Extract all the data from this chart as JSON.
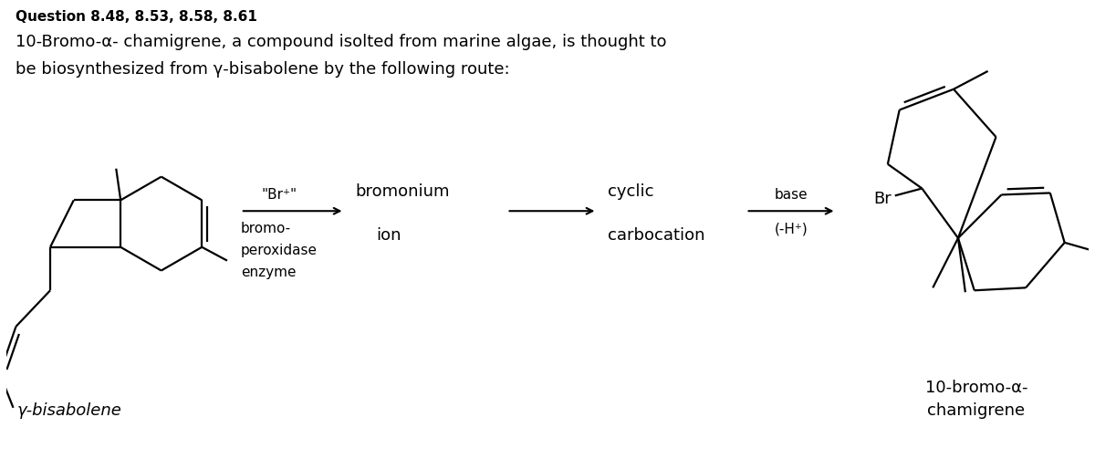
{
  "title": "Question 8.48, 8.53, 8.58, 8.61",
  "description_line1": "10-Bromo-α- chamigrene, a compound isolted from marine algae, is thought to",
  "description_line2": "be biosynthesized from γ-bisabolene by the following route:",
  "label_bisabolene": "γ-bisabolene",
  "label_product": "10-bromo-α-\nchamigrene",
  "arrow1_top": "\"Br⁺\"",
  "arrow1_bot1": "bromo-",
  "arrow1_bot2": "peroxidase",
  "arrow1_bot3": "enzyme",
  "bromonium_line1": "bromonium",
  "bromonium_line2": "ion",
  "cyclic_line1": "cyclic",
  "cyclic_line2": "carbocation",
  "arrow3_top": "base",
  "arrow3_bot": "(-H⁺)",
  "br_label": "Br",
  "bg_color": "#ffffff",
  "text_color": "#000000",
  "title_fontsize": 11,
  "desc_fontsize": 13,
  "label_fontsize": 13,
  "arrow_fontsize": 11
}
